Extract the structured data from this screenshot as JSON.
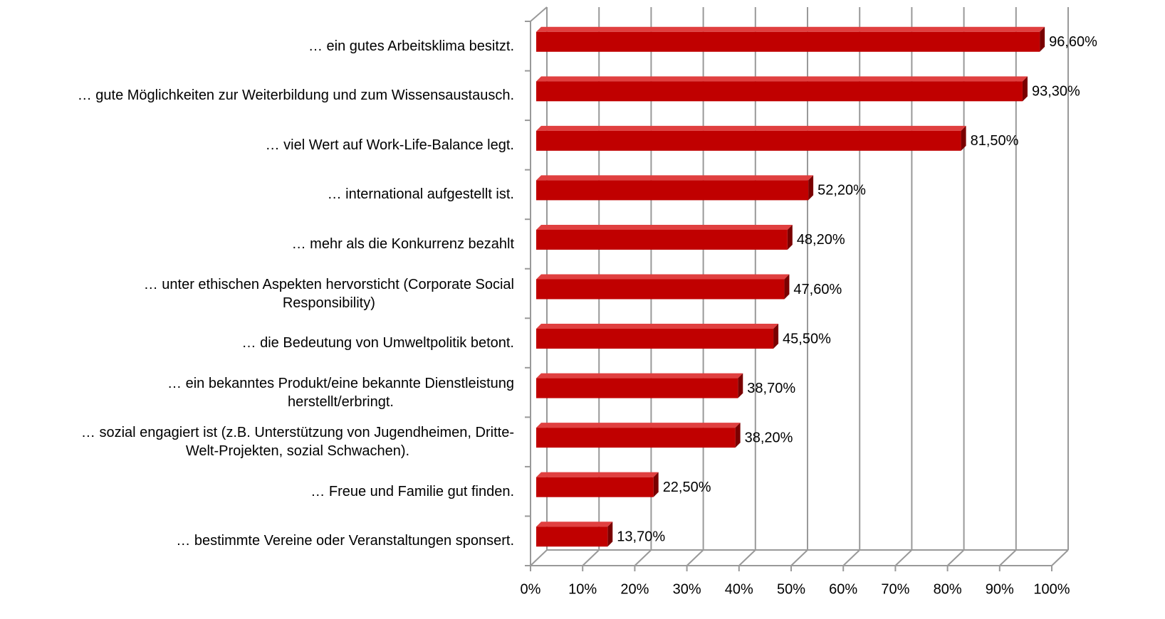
{
  "chart_data": {
    "type": "bar",
    "orientation": "horizontal",
    "categories": [
      "… ein gutes Arbeitsklima besitzt.",
      "… gute Möglichkeiten zur Weiterbildung und zum Wissensaustausch.",
      "… viel Wert auf Work-Life-Balance legt.",
      "… international aufgestellt ist.",
      "… mehr als die Konkurrenz bezahlt",
      "… unter ethischen Aspekten hervorsticht (Corporate Social\nResponsibility)",
      "… die Bedeutung von Umweltpolitik betont.",
      "… ein bekanntes Produkt/eine bekannte Dienstleistung\nherstellt/erbringt.",
      "… sozial engagiert ist (z.B. Unterstützung von Jugendheimen, Dritte-\nWelt-Projekten, sozial Schwachen).",
      "… Freue und Familie gut finden.",
      "… bestimmte Vereine oder Veranstaltungen sponsert."
    ],
    "values": [
      96.6,
      93.3,
      81.5,
      52.2,
      48.2,
      47.6,
      45.5,
      38.7,
      38.2,
      22.5,
      13.7
    ],
    "value_labels": [
      "96,60%",
      "93,30%",
      "81,50%",
      "52,20%",
      "48,20%",
      "47,60%",
      "45,50%",
      "38,70%",
      "38,20%",
      "22,50%",
      "13,70%"
    ],
    "color": "#c00000",
    "xlim": [
      0,
      100
    ],
    "xticks": [
      {
        "value": 0,
        "label": "0%"
      },
      {
        "value": 10,
        "label": "10%"
      },
      {
        "value": 20,
        "label": "20%"
      },
      {
        "value": 30,
        "label": "30%"
      },
      {
        "value": 40,
        "label": "40%"
      },
      {
        "value": 50,
        "label": "50%"
      },
      {
        "value": 60,
        "label": "60%"
      },
      {
        "value": 70,
        "label": "70%"
      },
      {
        "value": 80,
        "label": "80%"
      },
      {
        "value": 90,
        "label": "90%"
      },
      {
        "value": 100,
        "label": "100%"
      }
    ],
    "grid": true
  }
}
